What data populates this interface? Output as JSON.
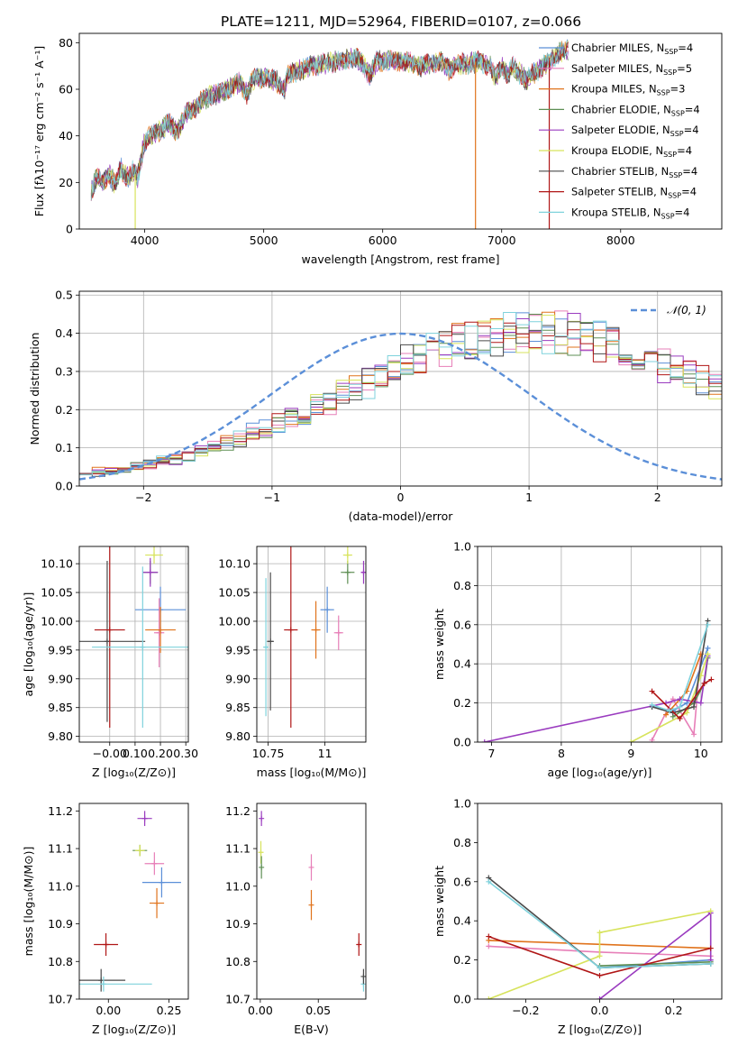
{
  "figure": {
    "title": "PLATE=1211, MJD=52964, FIBERID=0107, z=0.066"
  },
  "colors": {
    "Chabrier MILES": "#5b8fd8",
    "Salpeter MILES": "#e77fb8",
    "Kroupa MILES": "#e0731c",
    "Chabrier ELODIE": "#5e8f54",
    "Salpeter ELODIE": "#9a3bbf",
    "Kroupa ELODIE": "#d7e35c",
    "Chabrier STELIB": "#4a4a4a",
    "Salpeter STELIB": "#b01616",
    "Kroupa STELIB": "#7fd2dc",
    "normal": "#5b8fd8",
    "grid": "#b0b0b0"
  },
  "chart_data": [
    {
      "id": "spectrum",
      "type": "line",
      "title": "PLATE=1211, MJD=52964, FIBERID=0107, z=0.066",
      "xlabel": "wavelength [Angstrom, rest frame]",
      "ylabel": "Flux [fλ10⁻¹⁷ erg cm⁻² s⁻¹ A⁻¹]",
      "xlim": [
        3450,
        8850
      ],
      "ylim": [
        0,
        84
      ],
      "xticks": [
        4000,
        5000,
        6000,
        7000,
        8000
      ],
      "yticks": [
        0,
        20,
        40,
        60,
        80
      ],
      "grid": false,
      "legend_position": "top-right",
      "legend": [
        "Chabrier MILES, N_SSP=4",
        "Salpeter MILES, N_SSP=5",
        "Kroupa MILES, N_SSP=3",
        "Chabrier ELODIE, N_SSP=4",
        "Salpeter ELODIE, N_SSP=4",
        "Kroupa ELODIE, N_SSP=4",
        "Chabrier STELIB, N_SSP=4",
        "Salpeter STELIB, N_SSP=4",
        "Kroupa STELIB, N_SSP=4"
      ],
      "envelope": {
        "x": [
          3550,
          3600,
          3650,
          3700,
          3750,
          3800,
          3850,
          3900,
          3940,
          3970,
          4000,
          4050,
          4100,
          4150,
          4200,
          4250,
          4300,
          4350,
          4400,
          4500,
          4600,
          4700,
          4800,
          4861,
          4900,
          5000,
          5100,
          5175,
          5200,
          5300,
          5400,
          5500,
          5600,
          5700,
          5800,
          5890,
          5950,
          6000,
          6100,
          6200,
          6300,
          6400,
          6500,
          6563,
          6600,
          6700,
          6800,
          6900,
          6950,
          7000,
          7050,
          7100,
          7200,
          7300,
          7400,
          7500,
          7560
        ],
        "y": [
          17,
          22,
          20,
          24,
          19,
          26,
          22,
          25,
          22,
          30,
          38,
          40,
          41,
          43,
          46,
          42,
          44,
          50,
          51,
          56,
          58,
          60,
          63,
          58,
          64,
          65,
          64,
          60,
          66,
          68,
          70,
          71,
          72,
          73,
          73,
          66,
          72,
          72,
          72,
          72,
          70,
          71,
          72,
          68,
          70,
          71,
          72,
          70,
          65,
          70,
          66,
          70,
          64,
          68,
          72,
          76,
          77
        ]
      },
      "dropouts": [
        {
          "x": 3920,
          "y": 0
        },
        {
          "x": 6780,
          "y": 0
        },
        {
          "x": 7400,
          "y": 0
        }
      ]
    },
    {
      "id": "residuals",
      "type": "line",
      "xlabel": "(data-model)/error",
      "ylabel": "Normed distribution",
      "xlim": [
        -2.5,
        2.5
      ],
      "ylim": [
        0,
        0.51
      ],
      "xticks": [
        -2,
        -1,
        0,
        1,
        2
      ],
      "yticks": [
        0.0,
        0.1,
        0.2,
        0.3,
        0.4,
        0.5
      ],
      "grid": true,
      "legend_position": "top-right",
      "legend": [
        "𝒩(0, 1)"
      ],
      "bin_width": 0.1,
      "hist_base": [
        0.033,
        0.036,
        0.04,
        0.045,
        0.05,
        0.057,
        0.064,
        0.072,
        0.081,
        0.091,
        0.101,
        0.112,
        0.124,
        0.137,
        0.15,
        0.164,
        0.179,
        0.194,
        0.209,
        0.225,
        0.241,
        0.257,
        0.274,
        0.29,
        0.305,
        0.32,
        0.335,
        0.348,
        0.361,
        0.372,
        0.382,
        0.39,
        0.396,
        0.401,
        0.403,
        0.404,
        0.403,
        0.401,
        0.396,
        0.39,
        0.382,
        0.372,
        0.361,
        0.348,
        0.335,
        0.32,
        0.305,
        0.29,
        0.274,
        0.257,
        0.241,
        0.225,
        0.209,
        0.194,
        0.179,
        0.164,
        0.15,
        0.137,
        0.124,
        0.112,
        0.101,
        0.091,
        0.081,
        0.072,
        0.064,
        0.057,
        0.05,
        0.045,
        0.04,
        0.036,
        0.033,
        0.03,
        0.027,
        0.024,
        0.022,
        0.02,
        0.018,
        0.017,
        0.016,
        0.015
      ],
      "hist_note_range": [
        -2.5,
        2.5
      ]
    },
    {
      "id": "age-vs-z",
      "type": "scatter",
      "xlabel": "Z [log₁₀(Z/Z⊙)]",
      "ylabel": "age  [log₁₀(age/yr)]",
      "xlim": [
        -0.12,
        0.31
      ],
      "ylim": [
        9.79,
        10.13
      ],
      "xticks": [
        -0.0,
        0.1,
        0.2,
        0.3
      ],
      "xticklabels": [
        "−0.00",
        "0.10",
        "0.20",
        "0.30"
      ],
      "yticks": [
        9.8,
        9.85,
        9.9,
        9.95,
        10.0,
        10.05,
        10.1
      ],
      "grid": true,
      "points": [
        {
          "model": "Chabrier MILES",
          "x": 0.2,
          "y": 10.02,
          "xerr": 0.1,
          "yerr": 0.04
        },
        {
          "model": "Salpeter MILES",
          "x": 0.195,
          "y": 9.98,
          "xerr": 0.02,
          "yerr": 0.06
        },
        {
          "model": "Kroupa MILES",
          "x": 0.2,
          "y": 9.985,
          "xerr": 0.06,
          "yerr": 0.04
        },
        {
          "model": "Chabrier ELODIE",
          "x": 0.16,
          "y": 10.085,
          "xerr": 0.03,
          "yerr": 0.02
        },
        {
          "model": "Salpeter ELODIE",
          "x": 0.16,
          "y": 10.085,
          "xerr": 0.03,
          "yerr": 0.025
        },
        {
          "model": "Kroupa ELODIE",
          "x": 0.175,
          "y": 10.115,
          "xerr": 0.035,
          "yerr": 0.015
        },
        {
          "model": "Chabrier STELIB",
          "x": -0.01,
          "y": 9.965,
          "xerr": 0.15,
          "yerr": 0.14
        },
        {
          "model": "Salpeter STELIB",
          "x": 0.0,
          "y": 9.985,
          "xerr": 0.06,
          "yerr": 0.17
        },
        {
          "model": "Kroupa STELIB",
          "x": 0.13,
          "y": 9.955,
          "xerr": 0.2,
          "yerr": 0.14
        }
      ]
    },
    {
      "id": "age-vs-mass",
      "type": "scatter",
      "xlabel": "mass [log₁₀(M/M⊙)]",
      "ylabel": "",
      "xlim": [
        10.7,
        11.18
      ],
      "ylim": [
        9.79,
        10.13
      ],
      "xticks": [
        10.75,
        11.0
      ],
      "yticks": [
        9.8,
        9.85,
        9.9,
        9.95,
        10.0,
        10.05,
        10.1
      ],
      "grid": true,
      "points": [
        {
          "model": "Chabrier MILES",
          "x": 11.01,
          "y": 10.02,
          "xerr": 0.03,
          "yerr": 0.04
        },
        {
          "model": "Salpeter MILES",
          "x": 11.06,
          "y": 9.98,
          "xerr": 0.02,
          "yerr": 0.03
        },
        {
          "model": "Kroupa MILES",
          "x": 10.96,
          "y": 9.985,
          "xerr": 0.02,
          "yerr": 0.05
        },
        {
          "model": "Chabrier ELODIE",
          "x": 11.1,
          "y": 10.085,
          "xerr": 0.03,
          "yerr": 0.02
        },
        {
          "model": "Salpeter ELODIE",
          "x": 11.17,
          "y": 10.085,
          "xerr": 0.01,
          "yerr": 0.02
        },
        {
          "model": "Kroupa ELODIE",
          "x": 11.1,
          "y": 10.115,
          "xerr": 0.02,
          "yerr": 0.015
        },
        {
          "model": "Chabrier STELIB",
          "x": 10.76,
          "y": 9.965,
          "xerr": 0.015,
          "yerr": 0.12
        },
        {
          "model": "Salpeter STELIB",
          "x": 10.85,
          "y": 9.985,
          "xerr": 0.03,
          "yerr": 0.17
        },
        {
          "model": "Kroupa STELIB",
          "x": 10.74,
          "y": 9.955,
          "xerr": 0.01,
          "yerr": 0.12
        }
      ]
    },
    {
      "id": "weight-vs-age",
      "type": "line",
      "xlabel": "age  [log₁₀(age/yr)]",
      "ylabel": "mass weight",
      "xlim": [
        6.8,
        10.3
      ],
      "ylim": [
        0,
        1
      ],
      "xticks": [
        7,
        8,
        9,
        10
      ],
      "yticks": [
        0.0,
        0.2,
        0.4,
        0.6,
        0.8,
        1.0
      ],
      "grid": true,
      "series": [
        {
          "model": "Chabrier MILES",
          "x": [
            9.3,
            9.6,
            9.8,
            10.1
          ],
          "y": [
            0.18,
            0.16,
            0.2,
            0.48
          ]
        },
        {
          "model": "Salpeter MILES",
          "x": [
            9.3,
            9.6,
            9.9,
            10.0
          ],
          "y": [
            0.01,
            0.22,
            0.04,
            0.45
          ]
        },
        {
          "model": "Kroupa MILES",
          "x": [
            9.5,
            9.8,
            10.0
          ],
          "y": [
            0.14,
            0.26,
            0.45
          ]
        },
        {
          "model": "Chabrier ELODIE",
          "x": [
            9.6,
            9.9,
            10.05,
            10.1
          ],
          "y": [
            0.13,
            0.2,
            0.3,
            0.43
          ]
        },
        {
          "model": "Salpeter ELODIE",
          "x": [
            6.9,
            9.5,
            9.7,
            10.0,
            10.1
          ],
          "y": [
            0.0,
            0.2,
            0.22,
            0.2,
            0.44
          ]
        },
        {
          "model": "Kroupa ELODIE",
          "x": [
            9.0,
            9.8,
            10.0,
            10.1
          ],
          "y": [
            0.0,
            0.15,
            0.34,
            0.45
          ]
        },
        {
          "model": "Chabrier STELIB",
          "x": [
            9.3,
            9.6,
            9.9,
            10.1
          ],
          "y": [
            0.18,
            0.15,
            0.18,
            0.62
          ]
        },
        {
          "model": "Salpeter STELIB",
          "x": [
            9.3,
            9.7,
            10.05,
            10.15
          ],
          "y": [
            0.26,
            0.12,
            0.3,
            0.32
          ]
        },
        {
          "model": "Kroupa STELIB",
          "x": [
            9.3,
            9.55,
            9.7,
            10.1
          ],
          "y": [
            0.19,
            0.16,
            0.18,
            0.6
          ]
        }
      ]
    },
    {
      "id": "mass-vs-z",
      "type": "scatter",
      "xlabel": "Z [log₁₀(Z/Z⊙)]",
      "ylabel": "mass [log₁₀(M/M⊙)]",
      "xlim": [
        -0.12,
        0.33
      ],
      "ylim": [
        10.7,
        11.22
      ],
      "xticks": [
        0.0,
        0.25
      ],
      "xticklabels": [
        "0.00",
        "0.25"
      ],
      "yticks": [
        10.7,
        10.8,
        10.9,
        11.0,
        11.1,
        11.2
      ],
      "grid": false,
      "points": [
        {
          "model": "Chabrier MILES",
          "x": 0.22,
          "y": 11.01,
          "xerr": 0.08,
          "yerr": 0.04
        },
        {
          "model": "Salpeter MILES",
          "x": 0.19,
          "y": 11.06,
          "xerr": 0.04,
          "yerr": 0.03
        },
        {
          "model": "Kroupa MILES",
          "x": 0.2,
          "y": 10.955,
          "xerr": 0.03,
          "yerr": 0.04
        },
        {
          "model": "Chabrier ELODIE",
          "x": 0.13,
          "y": 11.095,
          "xerr": 0.03,
          "yerr": 0.015
        },
        {
          "model": "Salpeter ELODIE",
          "x": 0.15,
          "y": 11.18,
          "xerr": 0.03,
          "yerr": 0.02
        },
        {
          "model": "Kroupa ELODIE",
          "x": 0.13,
          "y": 11.095,
          "xerr": 0.02,
          "yerr": 0.015
        },
        {
          "model": "Chabrier STELIB",
          "x": -0.03,
          "y": 10.75,
          "xerr": 0.1,
          "yerr": 0.03
        },
        {
          "model": "Salpeter STELIB",
          "x": -0.01,
          "y": 10.845,
          "xerr": 0.05,
          "yerr": 0.03
        },
        {
          "model": "Kroupa STELIB",
          "x": -0.02,
          "y": 10.74,
          "xerr": 0.2,
          "yerr": 0.02
        }
      ]
    },
    {
      "id": "mass-vs-ebv",
      "type": "scatter",
      "xlabel": "E(B-V)",
      "ylabel": "",
      "xlim": [
        -0.003,
        0.091
      ],
      "ylim": [
        10.7,
        11.22
      ],
      "xticks": [
        0.0,
        0.05
      ],
      "xticklabels": [
        "0.00",
        "0.05"
      ],
      "yticks": [
        10.7,
        10.8,
        10.9,
        11.0,
        11.1,
        11.2
      ],
      "grid": false,
      "points": [
        {
          "model": "Salpeter ELODIE",
          "x": 0.001,
          "y": 11.18,
          "xerr": 0.0,
          "yerr": 0.02
        },
        {
          "model": "Kroupa ELODIE",
          "x": 0.0005,
          "y": 11.09,
          "xerr": 0.0,
          "yerr": 0.03
        },
        {
          "model": "Chabrier ELODIE",
          "x": 0.001,
          "y": 11.05,
          "xerr": 0.0,
          "yerr": 0.03
        },
        {
          "model": "Salpeter MILES",
          "x": 0.044,
          "y": 11.05,
          "xerr": 0.0,
          "yerr": 0.035
        },
        {
          "model": "Kroupa MILES",
          "x": 0.044,
          "y": 10.95,
          "xerr": 0.0,
          "yerr": 0.04
        },
        {
          "model": "Salpeter STELIB",
          "x": 0.085,
          "y": 10.845,
          "xerr": 0.0,
          "yerr": 0.03
        },
        {
          "model": "Kroupa STELIB",
          "x": 0.089,
          "y": 10.74,
          "xerr": 0.0,
          "yerr": 0.02
        },
        {
          "model": "Chabrier STELIB",
          "x": 0.089,
          "y": 10.76,
          "xerr": 0.0,
          "yerr": 0.02
        }
      ]
    },
    {
      "id": "weight-vs-z",
      "type": "line",
      "xlabel": "Z [log₁₀(Z/Z⊙)]",
      "ylabel": "mass weight",
      "xlim": [
        -0.33,
        0.33
      ],
      "ylim": [
        0,
        1
      ],
      "xticks": [
        -0.2,
        0.0,
        0.2
      ],
      "xticklabels": [
        "−0.2",
        "0.0",
        "0.2"
      ],
      "yticks": [
        0.0,
        0.2,
        0.4,
        0.6,
        0.8,
        1.0
      ],
      "grid": false,
      "series": [
        {
          "model": "Chabrier MILES",
          "x": [
            0.0,
            0.3
          ],
          "y": [
            0.16,
            0.2
          ]
        },
        {
          "model": "Salpeter MILES",
          "x": [
            -0.3,
            0.0,
            0.3
          ],
          "y": [
            0.27,
            0.24,
            0.22
          ]
        },
        {
          "model": "Kroupa MILES",
          "x": [
            -0.3,
            0.3
          ],
          "y": [
            0.3,
            0.26
          ]
        },
        {
          "model": "Chabrier ELODIE",
          "x": [
            0.0,
            0.3
          ],
          "y": [
            0.17,
            0.19
          ]
        },
        {
          "model": "Salpeter ELODIE",
          "x": [
            0.0,
            0.3,
            0.3
          ],
          "y": [
            0.0,
            0.44,
            0.2
          ]
        },
        {
          "model": "Kroupa ELODIE",
          "x": [
            -0.3,
            0.0,
            0.0,
            0.3
          ],
          "y": [
            0.0,
            0.22,
            0.34,
            0.45
          ]
        },
        {
          "model": "Chabrier STELIB",
          "x": [
            -0.3,
            0.0,
            0.3
          ],
          "y": [
            0.62,
            0.16,
            0.18
          ]
        },
        {
          "model": "Salpeter STELIB",
          "x": [
            -0.3,
            0.0,
            0.3
          ],
          "y": [
            0.32,
            0.12,
            0.26
          ]
        },
        {
          "model": "Kroupa STELIB",
          "x": [
            -0.3,
            0.0,
            0.3
          ],
          "y": [
            0.6,
            0.16,
            0.18
          ]
        }
      ]
    }
  ]
}
